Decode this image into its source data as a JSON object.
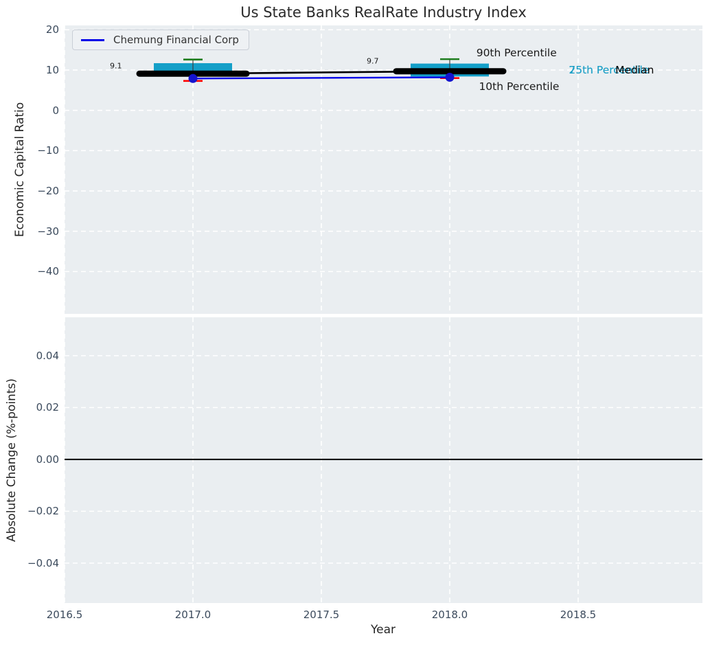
{
  "title": "Us State Banks RealRate Industry Index",
  "legend": {
    "label": "Chemung Financial Corp"
  },
  "colors": {
    "axes_bg": "#eaeef1",
    "grid": "#ffffff",
    "box_fill": "#149fc8",
    "company_line": "#0000e8",
    "company_marker": "#1414cf",
    "whisker_stem": "#3c3c3c",
    "whisker_high_cap": "#1e7d1e",
    "whisker_low_cap": "#ff0000",
    "median_line": "#000000",
    "zero_line": "#000000",
    "tick_text": "#3b4a5c",
    "label_text": "#262626",
    "percentile_text": "#1b9fc6"
  },
  "chart_data": [
    {
      "type": "boxplot",
      "panel": "top",
      "ylabel": "Economic Capital Ratio",
      "xlim": [
        2016.5,
        2018.984
      ],
      "ylim": [
        -50.5,
        21.07
      ],
      "grid": true,
      "show_x_tick_labels": false,
      "x_ticks": [
        {
          "label": "2016.5",
          "value": 2016.5
        },
        {
          "label": "2017.0",
          "value": 2017.0
        },
        {
          "label": "2017.5",
          "value": 2017.5
        },
        {
          "label": "2018.0",
          "value": 2018.0
        },
        {
          "label": "2018.5",
          "value": 2018.5
        }
      ],
      "y_ticks": [
        {
          "label": "20",
          "value": 20
        },
        {
          "label": "10",
          "value": 10
        },
        {
          "label": "0",
          "value": 0
        },
        {
          "label": "−10",
          "value": -10
        },
        {
          "label": "−20",
          "value": -20
        },
        {
          "label": "−30",
          "value": -30
        },
        {
          "label": "−40",
          "value": -40
        }
      ],
      "boxes": [
        {
          "x": 2017,
          "p90": 12.6,
          "p75": 11.7,
          "median": 9.1,
          "p25": 8.6,
          "p10": 7.3
        },
        {
          "x": 2018,
          "p90": 12.7,
          "p75": 11.6,
          "median": 9.7,
          "p25": 8.4,
          "p10": 8.0
        }
      ],
      "median_trend": {
        "x": [
          2017,
          2018
        ],
        "y": [
          9.1,
          9.7
        ]
      },
      "company_series": {
        "name": "Chemung Financial Corp",
        "x": [
          2017,
          2018
        ],
        "y": [
          7.9,
          8.2
        ]
      },
      "annotations": [
        {
          "text": "9.1",
          "x": 2016.7,
          "y": 11.0,
          "color": "#1a1a1a",
          "size": "small"
        },
        {
          "text": "9.7",
          "x": 2017.7,
          "y": 12.2,
          "color": "#1a1a1a",
          "size": "small"
        },
        {
          "text": "90th Percentile",
          "x": 2018.26,
          "y": 14.3,
          "color": "#1a1a1a",
          "size": "normal"
        },
        {
          "text": "10th Percentile",
          "x": 2018.27,
          "y": 5.9,
          "color": "#1a1a1a",
          "size": "normal"
        },
        {
          "text": "75th Percentile",
          "x": 2018.62,
          "y": 10.0,
          "color": "#1b9fc6",
          "size": "normal"
        },
        {
          "text": "25th Percentile",
          "x": 2018.62,
          "y": 10.0,
          "color": "#1b9fc6",
          "size": "normal"
        },
        {
          "text": "Median",
          "x": 2018.72,
          "y": 10.0,
          "color": "#000000",
          "size": "normal"
        }
      ]
    },
    {
      "type": "line",
      "panel": "bottom",
      "xlabel": "Year",
      "ylabel": "Absolute Change (%-points)",
      "xlim": [
        2016.5,
        2018.984
      ],
      "ylim": [
        -0.0554,
        0.0548
      ],
      "grid": true,
      "zero_line": true,
      "show_x_tick_labels": true,
      "x_ticks": [
        {
          "label": "2016.5",
          "value": 2016.5
        },
        {
          "label": "2017.0",
          "value": 2017.0
        },
        {
          "label": "2017.5",
          "value": 2017.5
        },
        {
          "label": "2018.0",
          "value": 2018.0
        },
        {
          "label": "2018.5",
          "value": 2018.5
        }
      ],
      "y_ticks": [
        {
          "label": "0.04",
          "value": 0.04
        },
        {
          "label": "0.02",
          "value": 0.02
        },
        {
          "label": "0.00",
          "value": 0.0
        },
        {
          "label": "−0.02",
          "value": -0.02
        },
        {
          "label": "−0.04",
          "value": -0.04
        }
      ],
      "series": [],
      "annotations": []
    }
  ]
}
